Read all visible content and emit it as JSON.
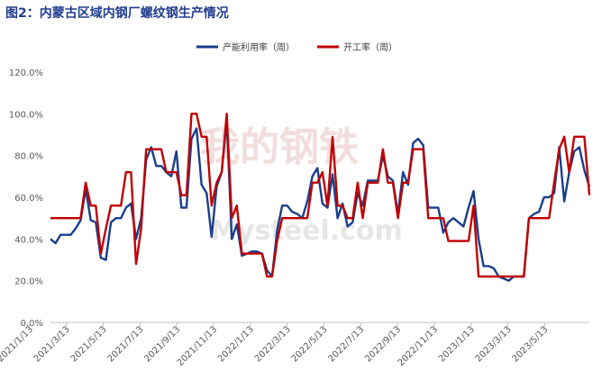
{
  "title": "图2：内蒙古区域内钢厂螺纹钢生产情况",
  "watermark": {
    "cn": "我的钢铁",
    "en": "Mysteel.com"
  },
  "colors": {
    "series_1": "#1a3e8c",
    "series_2": "#c00000",
    "axis": "#bfbfbf",
    "text": "#595959"
  },
  "chart_data": {
    "type": "line",
    "title": "图2：内蒙古区域内钢厂螺纹钢生产情况",
    "xlabel": "",
    "ylabel": "",
    "ylim": [
      0,
      120
    ],
    "ytick_labels": [
      "0.0%",
      "20.0%",
      "40.0%",
      "60.0%",
      "80.0%",
      "100.0%",
      "120.0%"
    ],
    "xtick_labels": [
      "2021/1/13",
      "2021/3/13",
      "2021/5/13",
      "2021/7/13",
      "2021/9/13",
      "2021/11/13",
      "2022/1/13",
      "2022/3/13",
      "2022/5/13",
      "2022/7/13",
      "2022/9/13",
      "2022/11/13",
      "2023/1/13",
      "2023/3/13",
      "2023/5/13"
    ],
    "grid": false,
    "legend": "top-center",
    "series": [
      {
        "name": "产能利用率（周）",
        "values": [
          40,
          38,
          42,
          42,
          42,
          45,
          49,
          64,
          49,
          48,
          31,
          30,
          48,
          50,
          50,
          55,
          57,
          40,
          50,
          78,
          84,
          75,
          75,
          72,
          70,
          82,
          55,
          55,
          88,
          93,
          66,
          62,
          41,
          65,
          72,
          97,
          40,
          47,
          32,
          33,
          34,
          34,
          33,
          25,
          22,
          44,
          56,
          56,
          53,
          52,
          50,
          58,
          70,
          74,
          57,
          55,
          71,
          50,
          57,
          46,
          48,
          62,
          56,
          68,
          68,
          68,
          80,
          70,
          68,
          52,
          72,
          66,
          86,
          88,
          85,
          55,
          55,
          55,
          43,
          48,
          50,
          48,
          46,
          55,
          63,
          40,
          27,
          27,
          26,
          22,
          21,
          20,
          22,
          22,
          22,
          50,
          52,
          53,
          60,
          60,
          62,
          84,
          58,
          72,
          82,
          84,
          73,
          65
        ]
      },
      {
        "name": "开工率（周）",
        "values": [
          50,
          50,
          50,
          50,
          50,
          50,
          50,
          67,
          56,
          56,
          33,
          45,
          56,
          56,
          56,
          72,
          72,
          28,
          45,
          83,
          83,
          83,
          83,
          72,
          72,
          72,
          61,
          61,
          100,
          100,
          89,
          89,
          56,
          67,
          72,
          100,
          50,
          56,
          33,
          33,
          33,
          33,
          33,
          22,
          22,
          39,
          50,
          50,
          50,
          50,
          50,
          50,
          67,
          67,
          72,
          56,
          89,
          56,
          56,
          50,
          50,
          67,
          50,
          67,
          67,
          67,
          83,
          67,
          67,
          50,
          67,
          67,
          83,
          83,
          83,
          50,
          50,
          50,
          50,
          39,
          39,
          39,
          39,
          39,
          56,
          22,
          22,
          22,
          22,
          22,
          22,
          22,
          22,
          22,
          22,
          50,
          50,
          50,
          50,
          50,
          67,
          83,
          89,
          72,
          89,
          89,
          89,
          61
        ]
      }
    ]
  }
}
